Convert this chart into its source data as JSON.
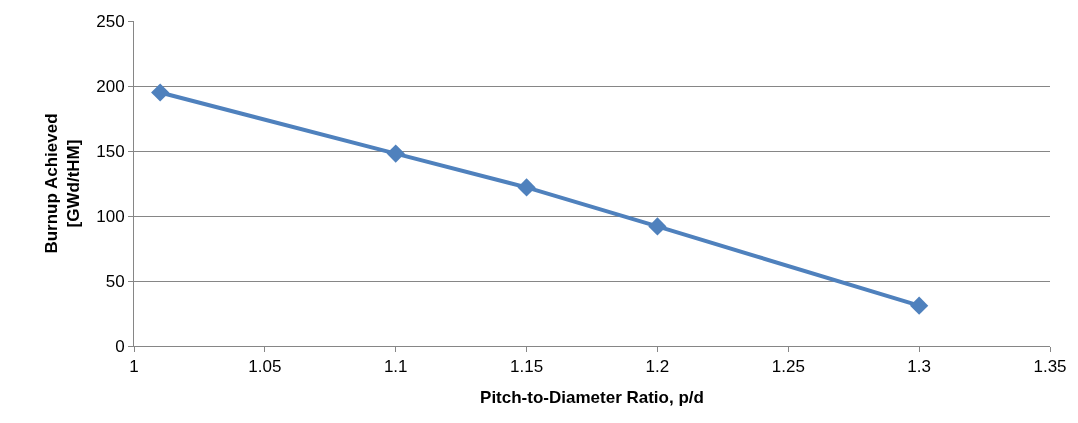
{
  "chart_data": {
    "type": "line",
    "xlabel": "Pitch-to-Diameter Ratio, p/d",
    "ylabel": "Burnup Achieved\n[GWd/tHM]",
    "x": [
      1.01,
      1.1,
      1.15,
      1.2,
      1.3
    ],
    "series": [
      {
        "color": "#4f81bd",
        "values": [
          195,
          148,
          122,
          92,
          31
        ]
      }
    ],
    "xlim": [
      1,
      1.35
    ],
    "xticks": [
      1,
      1.05,
      1.1,
      1.15,
      1.2,
      1.25,
      1.3,
      1.35
    ],
    "ylim": [
      0,
      250
    ],
    "yticks": [
      0,
      50,
      100,
      150,
      200,
      250
    ],
    "grid": "y",
    "marker": "diamond",
    "line_style": "solid"
  }
}
